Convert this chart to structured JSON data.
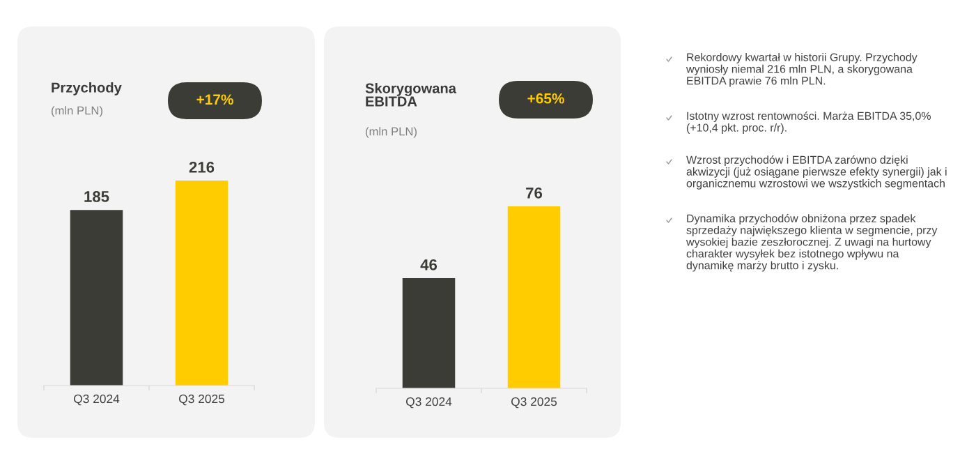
{
  "chart_data": [
    {
      "type": "bar",
      "title": "Przychody",
      "subtitle": "(mln PLN)",
      "categories": [
        "Q3 2024",
        "Q3 2025"
      ],
      "values": [
        185,
        216
      ],
      "colors": [
        "#3c3c37",
        "#ffcc00"
      ],
      "data_labels": true,
      "annotations": [
        "+17%"
      ]
    },
    {
      "type": "bar",
      "title": "Skorygowana\nEBITDA",
      "subtitle": "(mln PLN)",
      "categories": [
        "Q3 2024",
        "Q3 2025"
      ],
      "values": [
        46,
        76
      ],
      "colors": [
        "#3c3c37",
        "#ffcc00"
      ],
      "data_labels": true,
      "annotations": [
        "+65%"
      ]
    },
    {
      "type": "other",
      "annotations": [
        "Rekordowy kwartał w historii Grupy. Przychody wyniosły niemal 216 mln PLN, a skorygowana EBITDA prawie 76 mln PLN.",
        "Istotny wzrost rentowności. Marża EBITDA 35,0% (+10,4 pkt. proc. r/r).",
        "Wzrost przychodów i EBITDA zarówno dzięki akwizycji (już osiągane pierwsze efekty synergii) jak i organicznemu wzrostowi we wszystkich segmentach",
        "Dynamika przychodów obniżona przez spadek sprzedaży największego klienta w segmencie, przy wysokiej bazie zeszłorocznej. Z uwagi na hurtowy charakter wysyłek bez istotnego wpływu na dynamikę marży brutto i zysku."
      ]
    }
  ]
}
